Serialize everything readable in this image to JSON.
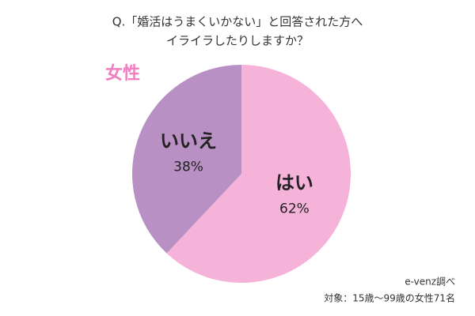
{
  "chart_data": {
    "type": "pie",
    "title_lines": [
      "Q.「婚活はうまくいかない」と回答された方へ",
      "イライラしたりしますか？"
    ],
    "subtitle": "女性",
    "categories": [
      "はい",
      "いいえ"
    ],
    "values": [
      62,
      38
    ],
    "value_labels": [
      "62%",
      "38%"
    ],
    "colors": [
      "#f5b3d9",
      "#b890c4"
    ],
    "source": "e-venz調べ",
    "note": "対象：15歳〜99歳の女性71名"
  }
}
